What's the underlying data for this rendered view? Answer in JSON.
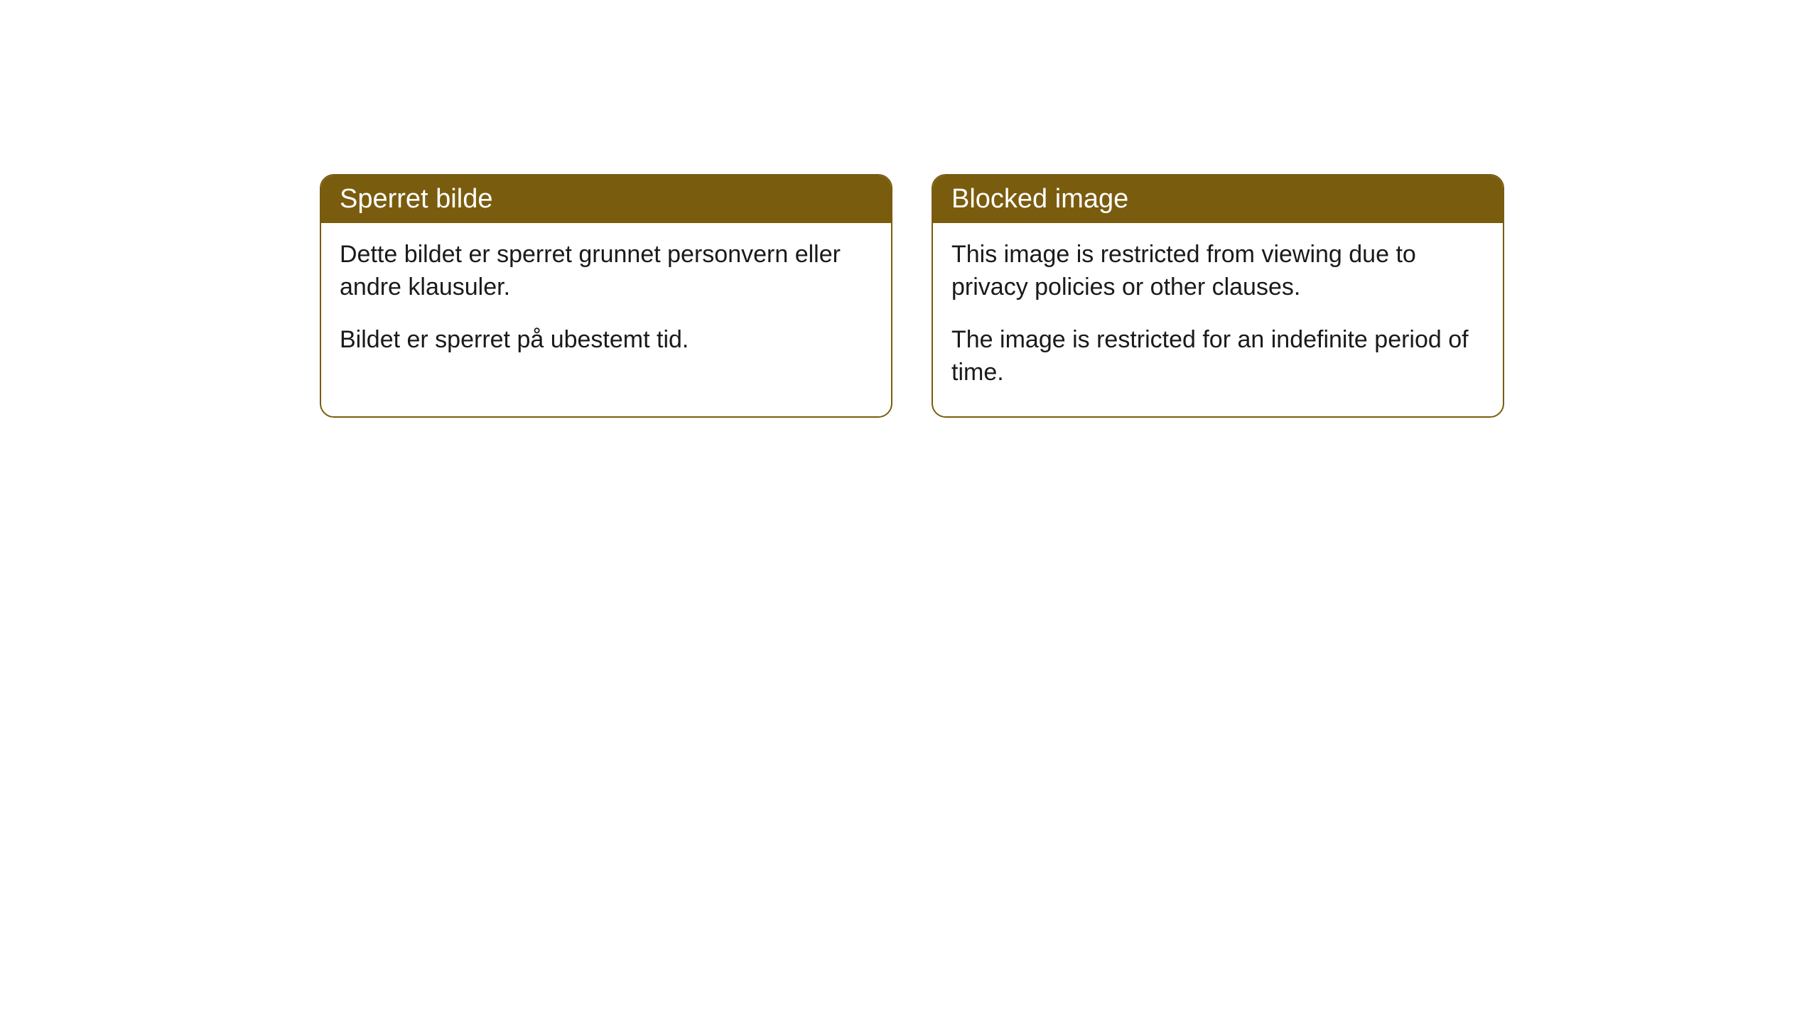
{
  "cards": [
    {
      "title": "Sperret bilde",
      "paragraph1": "Dette bildet er sperret grunnet personvern eller andre klausuler.",
      "paragraph2": "Bildet er sperret på ubestemt tid."
    },
    {
      "title": "Blocked image",
      "paragraph1": "This image is restricted from viewing due to privacy policies or other clauses.",
      "paragraph2": "The image is restricted for an indefinite period of time."
    }
  ],
  "styling": {
    "header_background": "#7a5c0f",
    "header_text_color": "#ffffff",
    "body_text_color": "#1a1a1a",
    "card_border_color": "#7a5c0f",
    "card_background": "#ffffff",
    "page_background": "#ffffff",
    "border_radius": 20,
    "header_fontsize": 38,
    "body_fontsize": 34
  }
}
